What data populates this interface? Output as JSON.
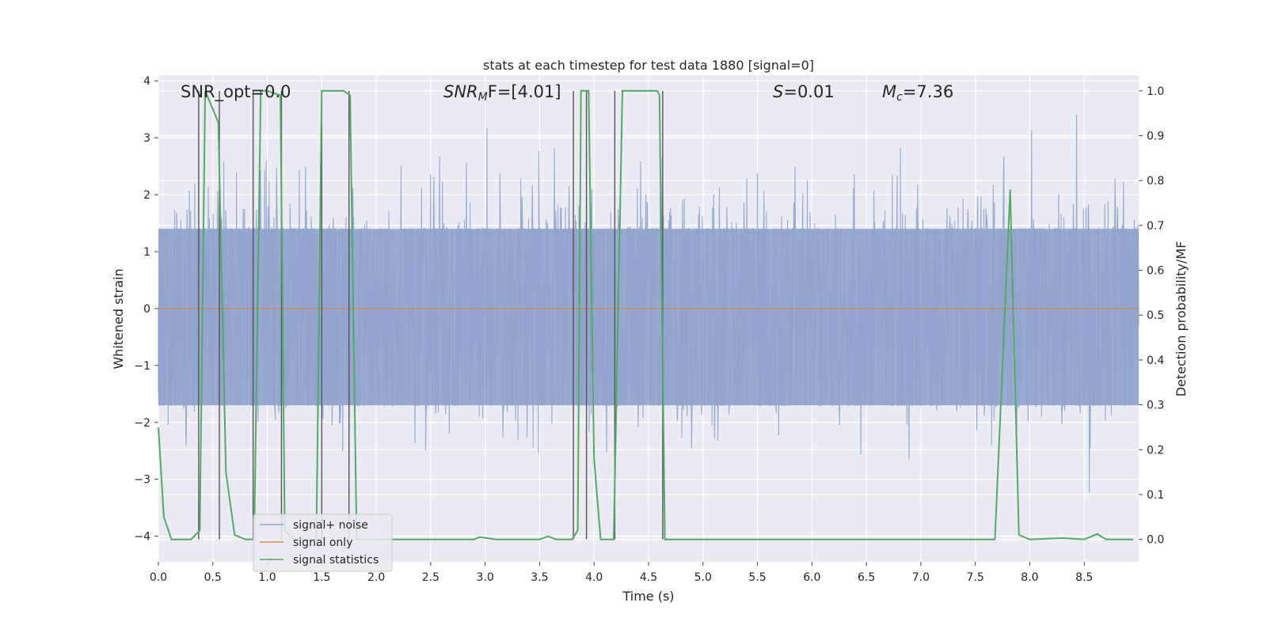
{
  "chart_data": {
    "type": "line",
    "title": "stats at each timestep for test data 1880 [signal=0]",
    "xlabel": "Time (s)",
    "ylabel_left": "Whitened strain",
    "ylabel_right": "Detection probability/MF",
    "xlim": [
      0,
      9.0
    ],
    "ylim_left": [
      -4.45,
      4.1
    ],
    "ylim_right": [
      -0.05,
      1.035
    ],
    "x_ticks": [
      "0.0",
      "0.5",
      "1.0",
      "1.5",
      "2.0",
      "2.5",
      "3.0",
      "3.5",
      "4.0",
      "4.5",
      "5.0",
      "5.5",
      "6.0",
      "6.5",
      "7.0",
      "7.5",
      "8.0",
      "8.5"
    ],
    "y_left_ticks": [
      "−4",
      "−3",
      "−2",
      "−1",
      "0",
      "1",
      "2",
      "3",
      "4"
    ],
    "y_right_ticks": [
      "0.0",
      "0.1",
      "0.2",
      "0.3",
      "0.4",
      "0.5",
      "0.6",
      "0.7",
      "0.8",
      "0.9",
      "1.0"
    ],
    "grid": true,
    "legend_placement": "lower-left",
    "annotations": {
      "snr_opt": "SNR_opt=0.0",
      "snr_mf_sym": "SNR",
      "snr_mf_sub": "M",
      "snr_mf_rest": "F=[4.01]",
      "s_sym": "S",
      "s_rest": "=0.01",
      "mc_sym": "M",
      "mc_sub": "c",
      "mc_rest": "=7.36"
    },
    "series": [
      {
        "name": "signal+ noise",
        "color": "#8fa3cc",
        "noise_envelope_core": [
          -1.7,
          1.4
        ],
        "peak_range": [
          -3.8,
          3.7
        ]
      },
      {
        "name": "signal only",
        "color": "#dd8452",
        "value": 0.0
      },
      {
        "name": "signal statistics",
        "color": "#55a868",
        "x": [
          0.0,
          0.05,
          0.12,
          0.2,
          0.3,
          0.38,
          0.43,
          0.55,
          0.62,
          0.7,
          0.8,
          0.88,
          0.94,
          1.0,
          1.12,
          1.16,
          1.24,
          1.3,
          1.45,
          1.5,
          1.56,
          1.7,
          1.76,
          1.82,
          2.0,
          2.5,
          2.9,
          2.95,
          3.1,
          3.5,
          3.58,
          3.65,
          3.8,
          3.85,
          3.88,
          3.95,
          4.0,
          4.06,
          4.12,
          4.18,
          4.26,
          4.58,
          4.6,
          4.65,
          4.8,
          5.5,
          6.5,
          6.8,
          7.0,
          7.68,
          7.82,
          7.9,
          8.0,
          8.3,
          8.5,
          8.62,
          8.7,
          8.95
        ],
        "y": [
          0.25,
          0.05,
          0.0,
          0.0,
          0.0,
          0.02,
          1.0,
          0.93,
          0.15,
          0.01,
          0.0,
          0.0,
          1.0,
          1.0,
          0.99,
          0.02,
          0.0,
          0.0,
          0.0,
          1.0,
          1.0,
          1.0,
          0.99,
          0.0,
          0.0,
          0.0,
          0.0,
          0.005,
          0.0,
          0.0,
          0.007,
          0.0,
          0.0,
          0.02,
          1.0,
          1.0,
          0.18,
          0.0,
          0.0,
          0.0,
          1.0,
          1.0,
          0.99,
          0.0,
          0.0,
          0.0,
          0.0,
          0.0,
          0.0,
          0.0,
          0.78,
          0.01,
          0.0,
          0.003,
          0.0,
          0.012,
          0.0,
          0.0
        ]
      }
    ],
    "vertical_markers_x": [
      0.37,
      0.56,
      0.87,
      1.13,
      1.5,
      1.75,
      3.81,
      3.93,
      4.19,
      4.63
    ]
  }
}
